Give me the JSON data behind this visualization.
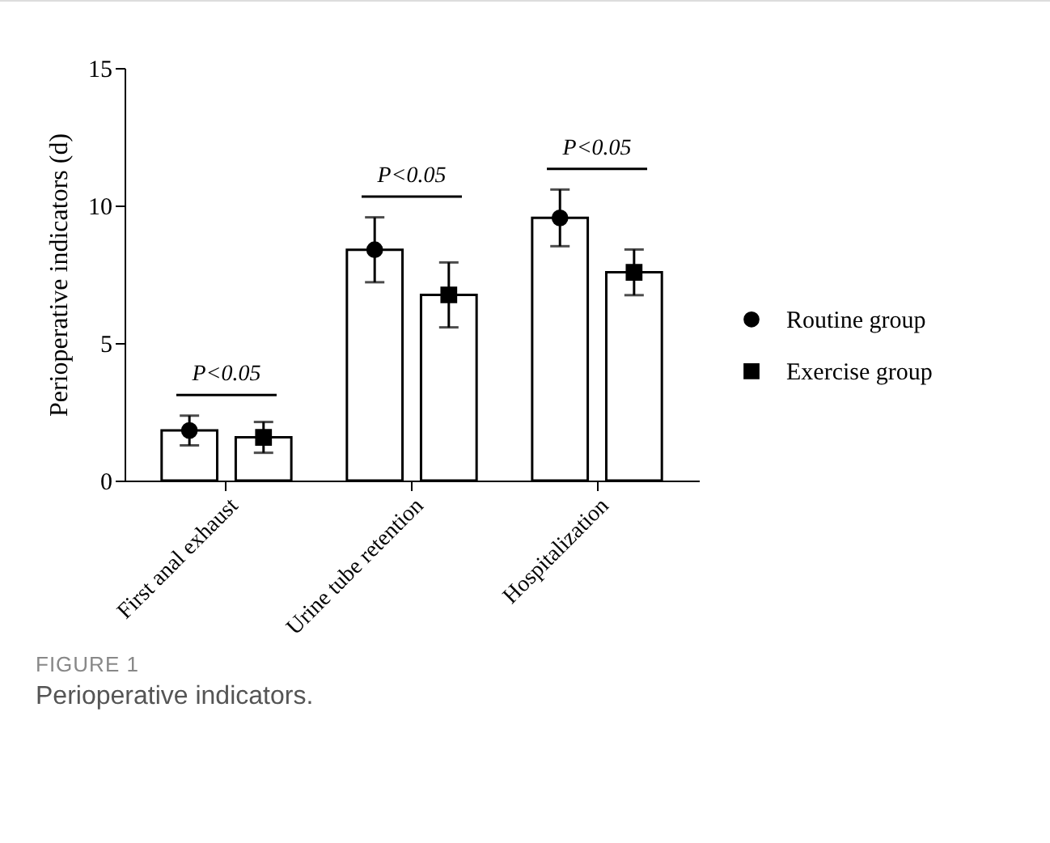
{
  "chart_data": {
    "type": "bar",
    "ylabel": "Perioperative indicators (d)",
    "categories": [
      "First anal exhaust",
      "Urine tube retention",
      "Hospitalization"
    ],
    "series": [
      {
        "type": "bar",
        "color": "#ffffff",
        "values": [
          1.82,
          8.39,
          9.55
        ]
      },
      {
        "type": "bar",
        "color": "#ffffff",
        "values": [
          1.57,
          6.75,
          7.57
        ]
      },
      {
        "type": "scatter",
        "name": "Routine group",
        "color": "#000000",
        "marker": "circle",
        "values": [
          1.82,
          8.39,
          9.55
        ],
        "errors": [
          0.54,
          1.18,
          1.03
        ]
      },
      {
        "type": "scatter",
        "name": "Exercise group",
        "color": "#000000",
        "marker": "square",
        "values": [
          1.57,
          6.75,
          7.57
        ],
        "errors": [
          0.56,
          1.18,
          0.83
        ]
      }
    ],
    "ylim": [
      0,
      15
    ],
    "yticks": [
      0,
      5,
      10,
      15
    ],
    "grid": false,
    "legend": "right",
    "annotations": [
      "P<0.05",
      "P<0.05",
      "P<0.05",
      "FIGURE 1",
      "Perioperative indicators."
    ]
  }
}
